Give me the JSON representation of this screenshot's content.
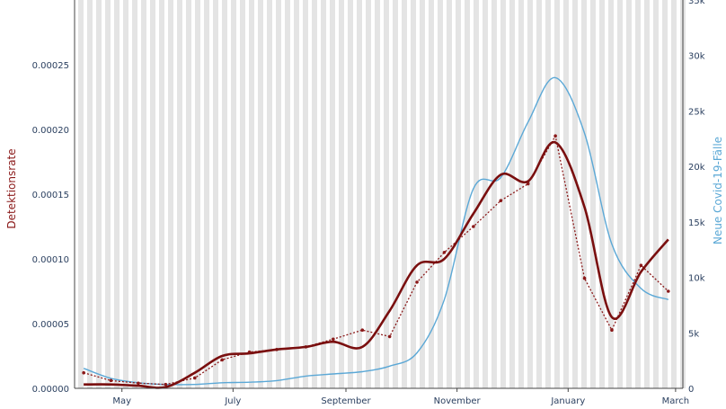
{
  "chart_data": {
    "type": "line",
    "title": "",
    "x_tick_labels": [
      "May",
      "July",
      "September",
      "November",
      "January",
      "March"
    ],
    "y_left": {
      "title": "Detektionsrate",
      "range": [
        0,
        0.0003
      ],
      "tick_values": [
        0,
        5e-05,
        0.0001,
        0.00015,
        0.0002,
        0.00025
      ],
      "tick_labels": [
        "0.00000",
        "0.00005",
        "0.00010",
        "0.00015",
        "0.00020",
        "0.00025"
      ]
    },
    "y_right": {
      "title": "Neue Covid-19-Fälle",
      "range": [
        0,
        35000
      ],
      "tick_values": [
        0,
        5000,
        10000,
        15000,
        20000,
        25000,
        30000,
        35000
      ],
      "tick_labels": [
        "0",
        "5k",
        "10k",
        "15k",
        "20k",
        "25k",
        "30k",
        "35k"
      ]
    },
    "grid": "vertical stripes",
    "colors": {
      "detection": "#8b1a1a",
      "smooth": "#7a0f0f",
      "cases": "#5ba8d6",
      "stripe": "#e4e4e4",
      "axis_left": "#8b1a1a",
      "axis_right": "#5ba8d6"
    },
    "series": [
      {
        "role": "detection-rate-daily",
        "axis": "left",
        "x": [
          "2020-04-10",
          "2020-04-25",
          "2020-05-10",
          "2020-05-25",
          "2020-06-10",
          "2020-06-25",
          "2020-07-10",
          "2020-07-25",
          "2020-08-10",
          "2020-08-25",
          "2020-09-10",
          "2020-09-25",
          "2020-10-10",
          "2020-10-25",
          "2020-11-10",
          "2020-11-25",
          "2020-12-10",
          "2020-12-25",
          "2021-01-10",
          "2021-01-25",
          "2021-02-10",
          "2021-02-25"
        ],
        "y": [
          1.2e-05,
          6e-06,
          4e-06,
          3e-06,
          8e-06,
          2.2e-05,
          2.8e-05,
          3e-05,
          3.2e-05,
          3.8e-05,
          4.5e-05,
          4e-05,
          8.2e-05,
          0.000105,
          0.000125,
          0.000145,
          0.000158,
          0.000195,
          8.5e-05,
          4.5e-05,
          9.5e-05,
          7.5e-05
        ]
      },
      {
        "role": "detection-rate-smoothed",
        "axis": "left",
        "x": [
          "2020-04-10",
          "2020-04-25",
          "2020-05-10",
          "2020-05-25",
          "2020-06-10",
          "2020-06-25",
          "2020-07-10",
          "2020-07-25",
          "2020-08-10",
          "2020-08-25",
          "2020-09-10",
          "2020-09-25",
          "2020-10-10",
          "2020-10-25",
          "2020-11-10",
          "2020-11-25",
          "2020-12-10",
          "2020-12-25",
          "2021-01-10",
          "2021-01-25",
          "2021-02-10",
          "2021-02-25"
        ],
        "y": [
          3e-06,
          3e-06,
          2e-06,
          1e-06,
          1.2e-05,
          2.5e-05,
          2.7e-05,
          3e-05,
          3.2e-05,
          3.6e-05,
          3.2e-05,
          6e-05,
          9.5e-05,
          0.0001,
          0.000135,
          0.000165,
          0.00016,
          0.00019,
          0.00014,
          5.5e-05,
          9e-05,
          0.000115
        ]
      },
      {
        "role": "new-cases",
        "axis": "right",
        "x": [
          "2020-04-10",
          "2020-04-25",
          "2020-05-10",
          "2020-05-25",
          "2020-06-10",
          "2020-06-25",
          "2020-07-10",
          "2020-07-25",
          "2020-08-10",
          "2020-08-25",
          "2020-09-10",
          "2020-09-25",
          "2020-10-10",
          "2020-10-25",
          "2020-11-10",
          "2020-11-25",
          "2020-12-10",
          "2020-12-25",
          "2021-01-10",
          "2021-01-25",
          "2021-02-10",
          "2021-02-25"
        ],
        "y": [
          1800,
          900,
          500,
          350,
          350,
          500,
          550,
          700,
          1100,
          1300,
          1500,
          2000,
          3200,
          8000,
          18000,
          19000,
          24000,
          28000,
          23000,
          13000,
          9000,
          8000
        ]
      }
    ]
  }
}
